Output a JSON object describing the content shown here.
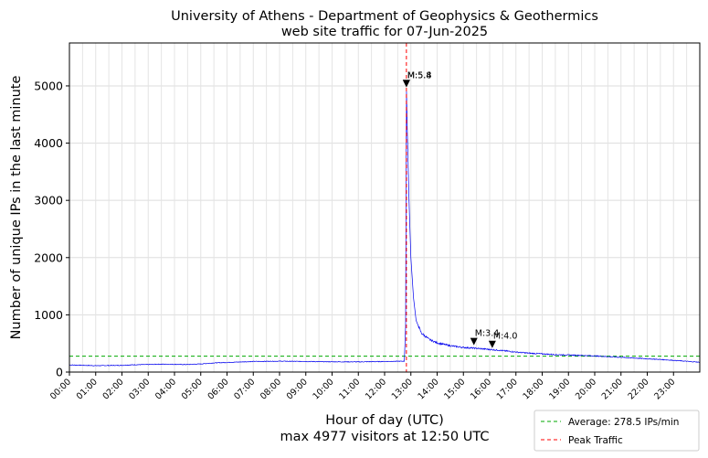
{
  "chart_data": {
    "type": "line",
    "title": "University of Athens - Department of Geophysics & Geothermics",
    "subtitle": "web site traffic for 07-Jun-2025",
    "xlabel": "Hour of day (UTC)",
    "xlabel_sub": "max 4977 visitors at 12:50 UTC",
    "ylabel": "Number of unique IPs in the last minute",
    "xlim": [
      0,
      24
    ],
    "ylim": [
      0,
      5750
    ],
    "yticks": [
      0,
      1000,
      2000,
      3000,
      4000,
      5000
    ],
    "xtick_labels": [
      "00:00",
      "01:00",
      "02:00",
      "03:00",
      "04:00",
      "05:00",
      "06:00",
      "07:00",
      "08:00",
      "09:00",
      "10:00",
      "11:00",
      "12:00",
      "13:00",
      "14:00",
      "15:00",
      "16:00",
      "17:00",
      "18:00",
      "19:00",
      "20:00",
      "21:00",
      "22:00",
      "23:00"
    ],
    "grid": true,
    "series_color": "#0000ee",
    "traffic_profile": [
      [
        0,
        125
      ],
      [
        0.5,
        118
      ],
      [
        1,
        112
      ],
      [
        1.5,
        115
      ],
      [
        2,
        118
      ],
      [
        2.5,
        128
      ],
      [
        3,
        132
      ],
      [
        3.5,
        138
      ],
      [
        4,
        135
      ],
      [
        4.5,
        132
      ],
      [
        5,
        142
      ],
      [
        5.5,
        160
      ],
      [
        6,
        168
      ],
      [
        7,
        185
      ],
      [
        8,
        190
      ],
      [
        9,
        185
      ],
      [
        10,
        180
      ],
      [
        11,
        178
      ],
      [
        12,
        185
      ],
      [
        12.75,
        190
      ],
      [
        12.8,
        800
      ],
      [
        12.83,
        4977
      ],
      [
        12.87,
        4100
      ],
      [
        12.93,
        3000
      ],
      [
        13.0,
        2000
      ],
      [
        13.1,
        1300
      ],
      [
        13.2,
        900
      ],
      [
        13.4,
        680
      ],
      [
        13.7,
        570
      ],
      [
        14,
        510
      ],
      [
        14.5,
        460
      ],
      [
        15,
        430
      ],
      [
        15.5,
        415
      ],
      [
        16,
        395
      ],
      [
        16.5,
        375
      ],
      [
        17,
        350
      ],
      [
        17.5,
        330
      ],
      [
        18,
        318
      ],
      [
        18.5,
        305
      ],
      [
        19,
        298
      ],
      [
        19.5,
        292
      ],
      [
        20,
        282
      ],
      [
        20.5,
        270
      ],
      [
        21,
        258
      ],
      [
        21.5,
        245
      ],
      [
        22,
        232
      ],
      [
        22.5,
        220
      ],
      [
        23,
        205
      ],
      [
        23.5,
        188
      ],
      [
        24,
        172
      ]
    ],
    "average": 278.5,
    "peak_time": 12.83,
    "markers": [
      {
        "x": 12.83,
        "y": 4977,
        "label": "M:5.8"
      },
      {
        "x": 12.83,
        "y": 4977,
        "label": "M:5.4"
      },
      {
        "x": 15.4,
        "y": 470,
        "label": "M:3.4"
      },
      {
        "x": 16.1,
        "y": 420,
        "label": "M:4.0"
      }
    ],
    "legend_position": "lower right",
    "legend": [
      {
        "label": "Average: 278.5 IPs/min",
        "color": "#00aa00",
        "style": "dashed"
      },
      {
        "label": "Peak Traffic",
        "color": "#ff0000",
        "style": "dashed"
      }
    ]
  }
}
